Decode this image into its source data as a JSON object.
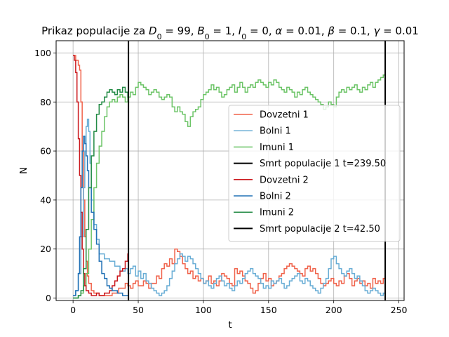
{
  "chart_data": {
    "type": "line",
    "title_html": "Prikaz populacije za D₀ = 99, B₀ = 1, I₀ = 0, α = 0.01, β = 0.1, γ = 0.01",
    "title_parts": [
      {
        "t": "Prikaz populacije za "
      },
      {
        "t": "D",
        "i": true
      },
      {
        "t": "0",
        "sub": true
      },
      {
        "t": " = 99, "
      },
      {
        "t": "B",
        "i": true
      },
      {
        "t": "0",
        "sub": true
      },
      {
        "t": " = 1, "
      },
      {
        "t": "I",
        "i": true
      },
      {
        "t": "0",
        "sub": true
      },
      {
        "t": " = 0, "
      },
      {
        "t": "α",
        "i": true
      },
      {
        "t": " = 0.01, "
      },
      {
        "t": "β",
        "i": true
      },
      {
        "t": " = 0.1, "
      },
      {
        "t": "γ",
        "i": true
      },
      {
        "t": " = 0.01"
      }
    ],
    "xlabel": "t",
    "ylabel": "N",
    "xlim": [
      -13,
      254
    ],
    "ylim": [
      -1,
      105
    ],
    "xticks": [
      0,
      50,
      100,
      150,
      200,
      250
    ],
    "yticks": [
      0,
      20,
      40,
      60,
      80,
      100
    ],
    "grid": true,
    "legend_position": "center-right",
    "series": [
      {
        "name": "Dovzetni 1",
        "color": "#f0624a",
        "width": 1.5,
        "x": [
          0,
          2,
          4,
          5,
          6,
          7,
          8,
          9,
          10,
          11,
          12,
          14,
          16,
          20,
          25,
          30,
          35,
          40,
          42,
          44,
          46,
          48,
          50,
          52,
          54,
          56,
          58,
          60,
          62,
          64,
          66,
          68,
          70,
          72,
          74,
          76,
          78,
          80,
          82,
          84,
          86,
          88,
          90,
          92,
          94,
          96,
          98,
          100,
          102,
          104,
          106,
          108,
          110,
          112,
          114,
          116,
          118,
          120,
          122,
          124,
          126,
          128,
          130,
          132,
          134,
          136,
          138,
          140,
          142,
          144,
          146,
          148,
          150,
          152,
          154,
          156,
          158,
          160,
          162,
          164,
          166,
          168,
          170,
          172,
          174,
          176,
          178,
          180,
          182,
          184,
          186,
          188,
          190,
          192,
          194,
          196,
          198,
          200,
          202,
          204,
          206,
          208,
          210,
          212,
          214,
          216,
          218,
          220,
          222,
          224,
          226,
          228,
          230,
          232,
          234,
          236,
          238,
          239.5
        ],
        "y": [
          99,
          97,
          95,
          93,
          80,
          60,
          40,
          25,
          15,
          9,
          6,
          3,
          2,
          1,
          1,
          2,
          4,
          6,
          5,
          4,
          6,
          7,
          5,
          5,
          7,
          6,
          4,
          6,
          6,
          9,
          8,
          12,
          14,
          13,
          16,
          14,
          20,
          19,
          17,
          14,
          12,
          10,
          11,
          8,
          9,
          7,
          8,
          6,
          7,
          9,
          6,
          7,
          5,
          7,
          10,
          9,
          8,
          6,
          5,
          12,
          10,
          11,
          9,
          7,
          6,
          4,
          2,
          3,
          6,
          8,
          10,
          7,
          8,
          5,
          6,
          7,
          9,
          10,
          12,
          13,
          14,
          13,
          12,
          11,
          10,
          9,
          12,
          13,
          11,
          12,
          10,
          8,
          6,
          5,
          6,
          7,
          8,
          6,
          5,
          7,
          6,
          9,
          10,
          8,
          5,
          7,
          8,
          6,
          7,
          5,
          6,
          4,
          8,
          6,
          7,
          6,
          8,
          9
        ]
      },
      {
        "name": "Bolni 1",
        "color": "#68add5",
        "width": 1.5,
        "x": [
          0,
          2,
          4,
          6,
          8,
          9,
          10,
          11,
          12,
          13,
          14,
          16,
          18,
          20,
          24,
          28,
          32,
          36,
          40,
          42,
          44,
          46,
          48,
          50,
          52,
          54,
          56,
          58,
          60,
          62,
          64,
          66,
          68,
          70,
          72,
          74,
          76,
          78,
          80,
          82,
          84,
          86,
          88,
          90,
          92,
          94,
          96,
          98,
          100,
          102,
          104,
          106,
          108,
          110,
          112,
          114,
          116,
          118,
          120,
          122,
          124,
          126,
          128,
          130,
          132,
          134,
          136,
          138,
          140,
          142,
          144,
          146,
          148,
          150,
          152,
          154,
          156,
          158,
          160,
          162,
          164,
          166,
          168,
          170,
          172,
          174,
          176,
          178,
          180,
          182,
          184,
          186,
          188,
          190,
          192,
          194,
          196,
          198,
          200,
          202,
          204,
          206,
          208,
          210,
          212,
          214,
          216,
          218,
          220,
          222,
          224,
          226,
          228,
          230,
          232,
          234,
          236,
          238,
          239.5
        ],
        "y": [
          1,
          3,
          10,
          25,
          45,
          60,
          70,
          73,
          68,
          55,
          40,
          30,
          24,
          18,
          16,
          15,
          13,
          11,
          12,
          10,
          12,
          13,
          9,
          11,
          8,
          10,
          7,
          6,
          4,
          3,
          2,
          1,
          2,
          3,
          5,
          8,
          11,
          14,
          16,
          18,
          17,
          15,
          17,
          16,
          14,
          12,
          10,
          8,
          6,
          7,
          5,
          4,
          6,
          8,
          9,
          7,
          5,
          6,
          4,
          3,
          5,
          7,
          6,
          8,
          10,
          11,
          12,
          10,
          9,
          8,
          6,
          4,
          5,
          4,
          7,
          6,
          7,
          8,
          6,
          4,
          5,
          7,
          8,
          9,
          10,
          7,
          6,
          8,
          7,
          5,
          4,
          3,
          2,
          4,
          6,
          8,
          12,
          16,
          17,
          14,
          12,
          10,
          9,
          11,
          12,
          10,
          8,
          9,
          7,
          5,
          3,
          2,
          3,
          4,
          3,
          2,
          1,
          2,
          1
        ]
      },
      {
        "name": "Imuni 1",
        "color": "#6cc467",
        "width": 1.5,
        "x": [
          0,
          4,
          6,
          8,
          10,
          12,
          14,
          16,
          18,
          20,
          22,
          24,
          26,
          28,
          30,
          32,
          34,
          36,
          38,
          40,
          42,
          44,
          46,
          48,
          50,
          52,
          54,
          56,
          58,
          60,
          62,
          64,
          66,
          68,
          70,
          72,
          74,
          76,
          78,
          80,
          82,
          84,
          86,
          88,
          90,
          92,
          94,
          96,
          98,
          100,
          102,
          104,
          106,
          108,
          110,
          112,
          114,
          116,
          118,
          120,
          122,
          124,
          126,
          128,
          130,
          132,
          134,
          136,
          138,
          140,
          142,
          144,
          146,
          148,
          150,
          152,
          154,
          156,
          158,
          160,
          162,
          164,
          166,
          168,
          170,
          172,
          174,
          176,
          178,
          180,
          182,
          184,
          186,
          188,
          190,
          192,
          194,
          196,
          198,
          200,
          202,
          204,
          206,
          208,
          210,
          212,
          214,
          216,
          218,
          220,
          222,
          224,
          226,
          228,
          230,
          232,
          234,
          236,
          238,
          239.5
        ],
        "y": [
          0,
          1,
          2,
          5,
          10,
          20,
          32,
          45,
          55,
          62,
          68,
          74,
          78,
          80,
          81,
          80,
          82,
          83,
          82,
          80,
          82,
          84,
          83,
          86,
          88,
          87,
          86,
          85,
          83,
          84,
          85,
          84,
          82,
          81,
          82,
          83,
          82,
          78,
          76,
          78,
          76,
          75,
          72,
          70,
          74,
          76,
          77,
          78,
          81,
          83,
          84,
          85,
          87,
          85,
          86,
          84,
          82,
          83,
          85,
          86,
          87,
          84,
          86,
          88,
          86,
          84,
          86,
          87,
          86,
          88,
          89,
          88,
          87,
          86,
          88,
          87,
          89,
          88,
          86,
          85,
          84,
          86,
          85,
          84,
          82,
          84,
          83,
          85,
          86,
          84,
          83,
          82,
          81,
          80,
          79,
          77,
          78,
          80,
          79,
          78,
          82,
          84,
          85,
          84,
          86,
          85,
          86,
          87,
          85,
          84,
          86,
          85,
          87,
          88,
          86,
          88,
          89,
          90,
          91,
          90
        ]
      },
      {
        "name": "Smrt populacije 1 t=239.50",
        "color": "#000000",
        "width": 2,
        "vline": 239.5
      },
      {
        "name": "Dovzetni 2",
        "color": "#cb181d",
        "width": 1.5,
        "x": [
          0,
          1,
          2,
          3,
          4,
          5,
          6,
          7,
          8,
          9,
          10,
          12,
          14,
          16,
          18,
          20,
          22,
          24,
          26,
          28,
          30,
          32,
          34,
          36,
          38,
          40,
          42,
          42.5
        ],
        "y": [
          99,
          97,
          92,
          80,
          65,
          50,
          35,
          20,
          10,
          5,
          3,
          2,
          1,
          1,
          2,
          1,
          1,
          2,
          2,
          3,
          5,
          7,
          9,
          11,
          12,
          15,
          18,
          19
        ]
      },
      {
        "name": "Bolni 2",
        "color": "#2171b5",
        "width": 1.5,
        "x": [
          0,
          2,
          4,
          5,
          6,
          7,
          8,
          9,
          10,
          11,
          12,
          14,
          16,
          18,
          20,
          22,
          24,
          26,
          28,
          30,
          32,
          34,
          36,
          38,
          40,
          42,
          42.5
        ],
        "y": [
          1,
          3,
          10,
          25,
          45,
          60,
          66,
          63,
          58,
          52,
          45,
          35,
          28,
          22,
          15,
          10,
          8,
          5,
          4,
          3,
          3,
          2,
          2,
          1,
          1,
          1,
          1
        ]
      },
      {
        "name": "Imuni 2",
        "color": "#238b45",
        "width": 1.5,
        "x": [
          0,
          4,
          6,
          8,
          10,
          12,
          14,
          16,
          18,
          20,
          22,
          24,
          26,
          28,
          30,
          32,
          34,
          36,
          38,
          40,
          42,
          42.5
        ],
        "y": [
          0,
          1,
          3,
          12,
          28,
          45,
          58,
          68,
          75,
          79,
          80,
          82,
          84,
          85,
          84,
          83,
          85,
          84,
          86,
          84,
          82,
          81
        ]
      },
      {
        "name": "Smrt populacije 2 t=42.50",
        "color": "#000000",
        "width": 2,
        "vline": 42.5
      }
    ]
  }
}
